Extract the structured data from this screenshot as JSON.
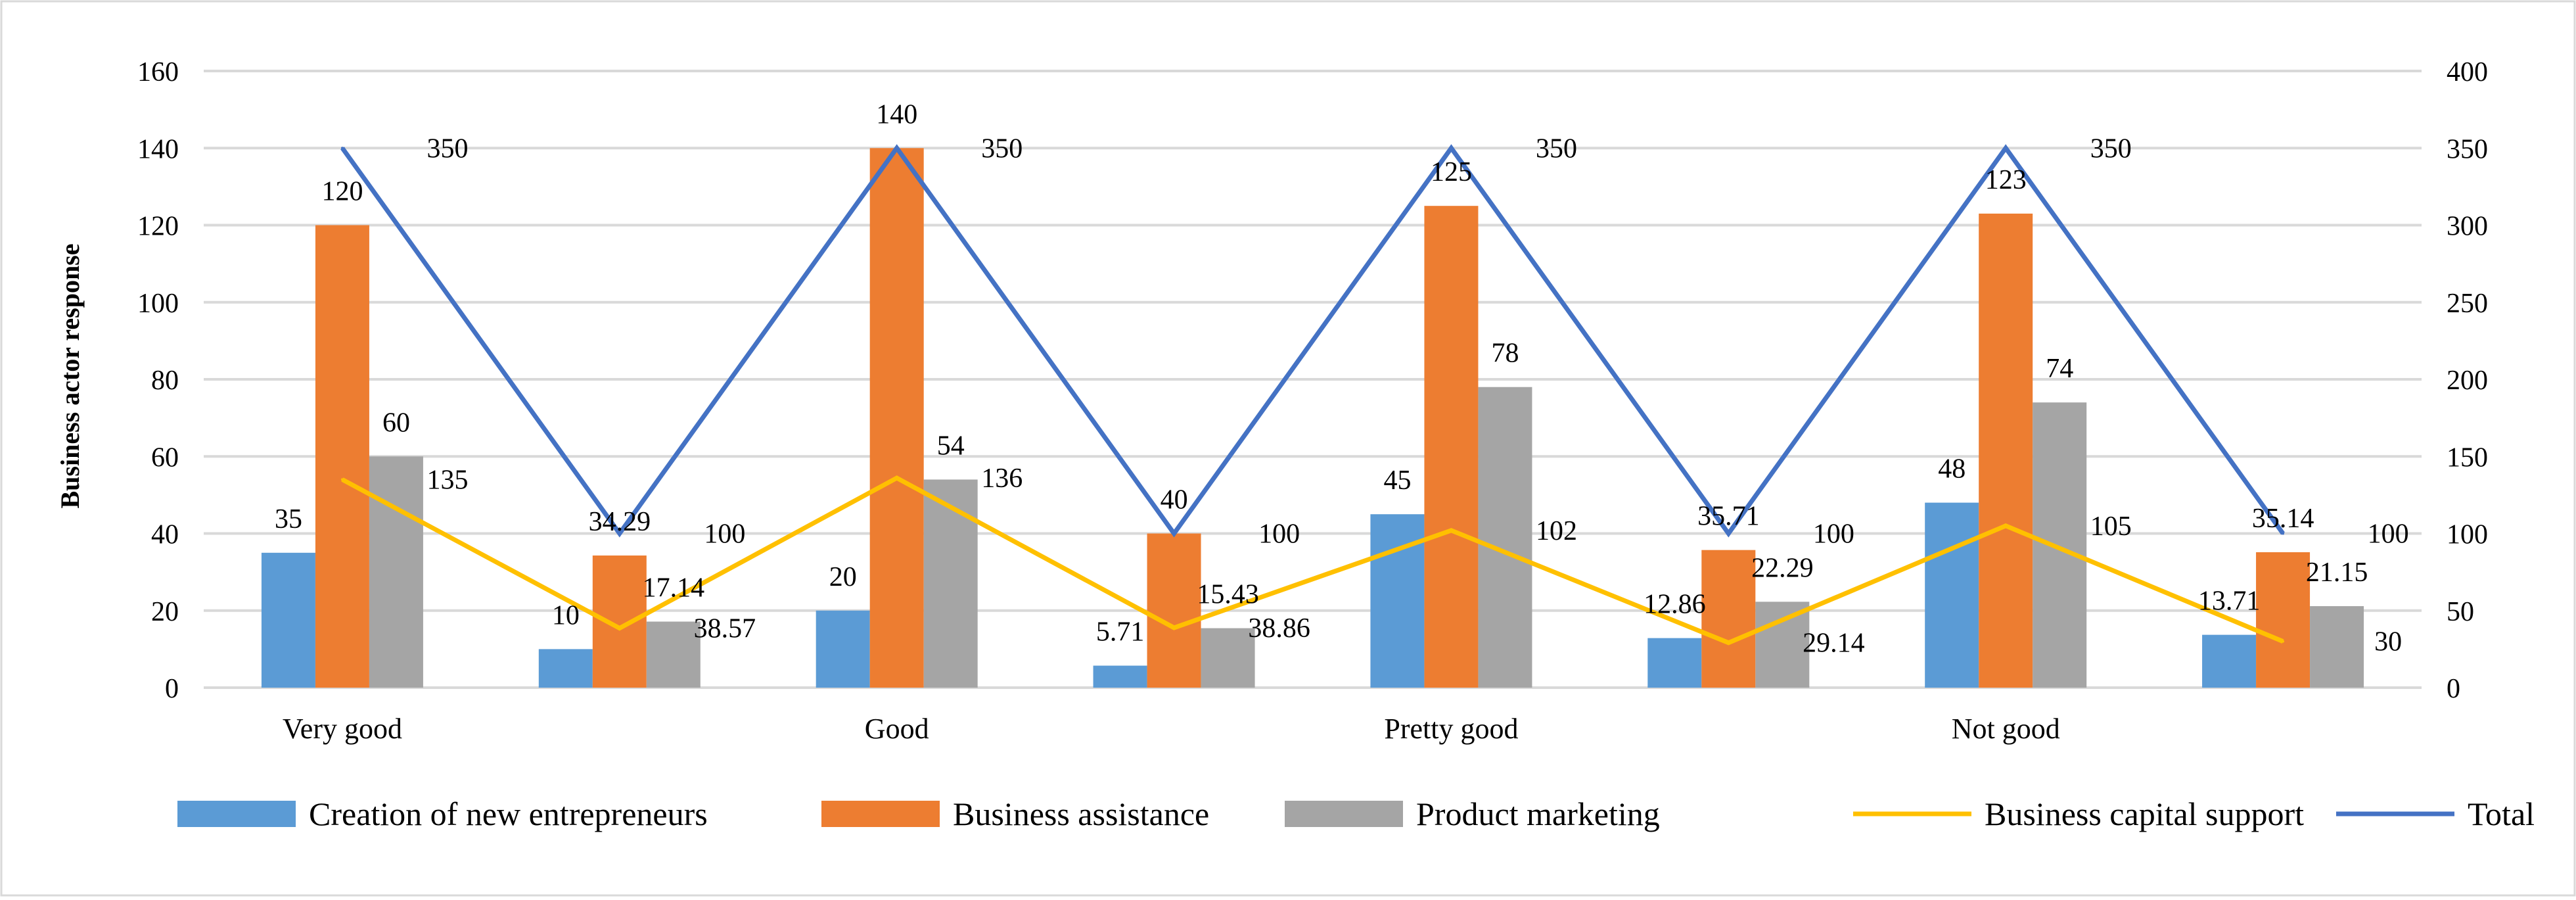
{
  "chart_data": {
    "type": "bar",
    "title": "",
    "xlabel": "",
    "ylabel": "Business actor response",
    "y2label": "",
    "ylim": [
      0,
      160
    ],
    "y2lim": [
      0,
      400
    ],
    "yticks": [
      0,
      20,
      40,
      60,
      80,
      100,
      120,
      140,
      160
    ],
    "y2ticks": [
      0,
      50,
      100,
      150,
      200,
      250,
      300,
      350,
      400
    ],
    "grid": true,
    "legend": "bottom",
    "categories": [
      "Very good",
      "",
      "Good",
      "",
      "Pretty good",
      "",
      "Not good",
      ""
    ],
    "colors": {
      "blue": "#5b9bd5",
      "orange": "#ed7d31",
      "gray": "#a5a5a5",
      "yellow": "#ffc000",
      "line_blue": "#4472c4",
      "grid": "#d9d9d9"
    },
    "series": [
      {
        "name": "Creation of new entrepreneurs",
        "kind": "bar",
        "axis": "left",
        "color": "#5b9bd5",
        "values": [
          35,
          10,
          20,
          5.71,
          45,
          12.86,
          48,
          13.71
        ],
        "labels": [
          "35",
          "10",
          "20",
          "5.71",
          "45",
          "12.86",
          "48",
          "13.71"
        ]
      },
      {
        "name": "Business assistance",
        "kind": "bar",
        "axis": "left",
        "color": "#ed7d31",
        "values": [
          120,
          34.29,
          140,
          40,
          125,
          35.71,
          123,
          35.14
        ],
        "labels": [
          "120",
          "34.29",
          "140",
          "40",
          "125",
          "35.71",
          "123",
          "35.14"
        ]
      },
      {
        "name": "Product marketing",
        "kind": "bar",
        "axis": "left",
        "color": "#a5a5a5",
        "values": [
          60,
          17.14,
          54,
          15.43,
          78,
          22.29,
          74,
          21.15
        ],
        "labels": [
          "60",
          "17.14",
          "54",
          "15.43",
          "78",
          "22.29",
          "74",
          "21.15"
        ]
      },
      {
        "name": "Business capital support",
        "kind": "line",
        "axis": "right",
        "color": "#ffc000",
        "values": [
          135,
          38.57,
          136,
          38.86,
          102,
          29.14,
          105,
          30
        ],
        "labels": [
          "135",
          "38.57",
          "136",
          "38.86",
          "102",
          "29.14",
          "105",
          "30"
        ]
      },
      {
        "name": "Total",
        "kind": "line",
        "axis": "right",
        "color": "#4472c4",
        "values": [
          350,
          100,
          350,
          100,
          350,
          100,
          350,
          100
        ],
        "labels": [
          "350",
          "100",
          "350",
          "100",
          "350",
          "100",
          "350",
          "100"
        ]
      }
    ]
  }
}
